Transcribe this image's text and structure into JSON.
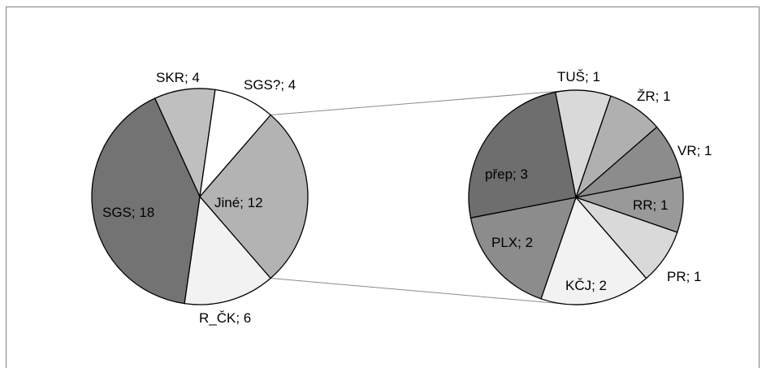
{
  "chart_data": {
    "type": "pie",
    "subtype": "pie-of-pie",
    "primary": {
      "slices": [
        {
          "label": "Jiné; 12",
          "name": "Jiné",
          "value": 12,
          "color": "#b3b3b3"
        },
        {
          "label": "R_ČK; 6",
          "name": "R_ČK",
          "value": 6,
          "color": "#f2f2f2"
        },
        {
          "label": "SGS; 18",
          "name": "SGS",
          "value": 18,
          "color": "#737373"
        },
        {
          "label": "SKR; 4",
          "name": "SKR",
          "value": 4,
          "color": "#bfbfbf"
        },
        {
          "label": "SGS?; 4",
          "name": "SGS?",
          "value": 4,
          "color": "#ffffff"
        }
      ]
    },
    "secondary": {
      "slices": [
        {
          "label": "ŽR; 1",
          "name": "ŽR",
          "value": 1,
          "color": "#b0b0b0"
        },
        {
          "label": "VR; 1",
          "name": "VR",
          "value": 1,
          "color": "#8c8c8c"
        },
        {
          "label": "RR; 1",
          "name": "RR",
          "value": 1,
          "color": "#999999"
        },
        {
          "label": "PR; 1",
          "name": "PR",
          "value": 1,
          "color": "#d9d9d9"
        },
        {
          "label": "KČJ; 2",
          "name": "KČJ",
          "value": 2,
          "color": "#f2f2f2"
        },
        {
          "label": "PLX; 2",
          "name": "PLX",
          "value": 2,
          "color": "#8c8c8c"
        },
        {
          "label": "přep; 3",
          "name": "přep",
          "value": 3,
          "color": "#6e6e6e"
        },
        {
          "label": "TUŠ; 1",
          "name": "TUŠ",
          "value": 1,
          "color": "#d9d9d9"
        }
      ]
    },
    "title": "",
    "legend": "none"
  }
}
